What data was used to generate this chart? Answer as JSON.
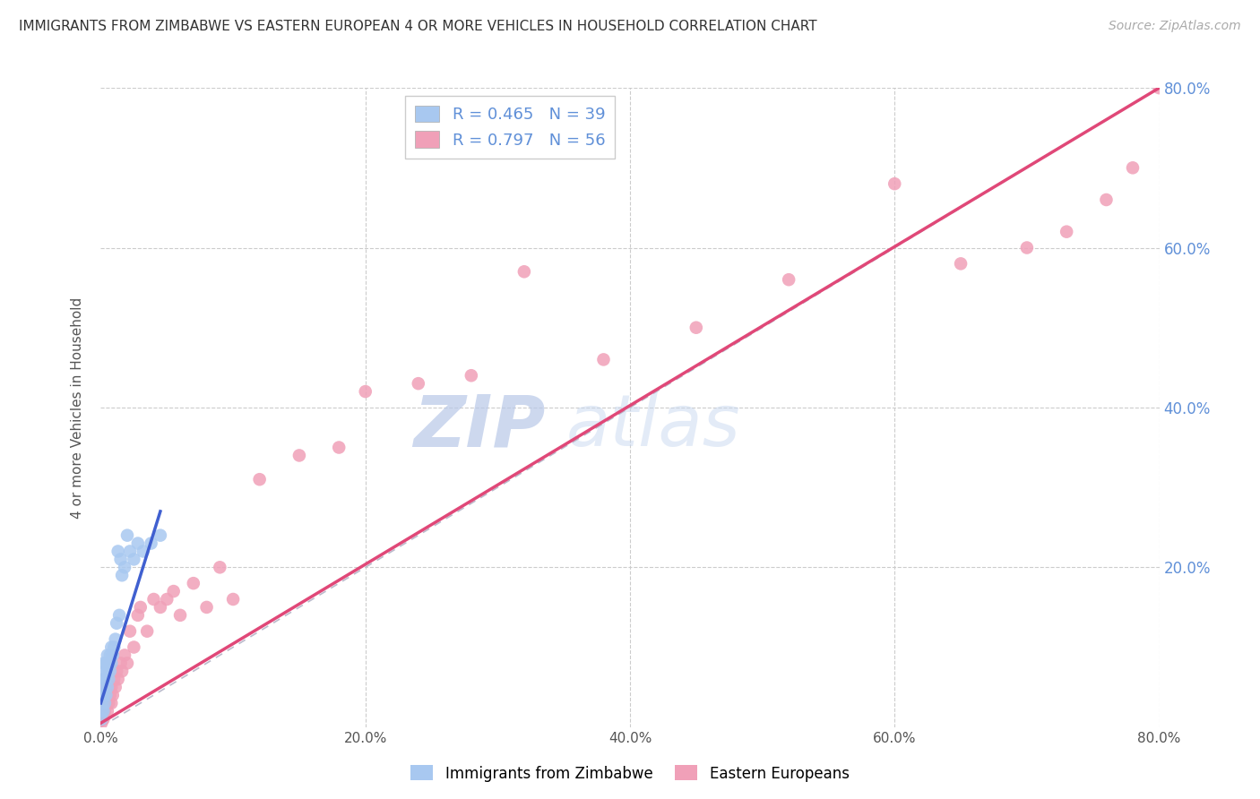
{
  "title": "IMMIGRANTS FROM ZIMBABWE VS EASTERN EUROPEAN 4 OR MORE VEHICLES IN HOUSEHOLD CORRELATION CHART",
  "source": "Source: ZipAtlas.com",
  "ylabel": "4 or more Vehicles in Household",
  "legend_labels": [
    "Immigrants from Zimbabwe",
    "Eastern Europeans"
  ],
  "R_zimbabwe": 0.465,
  "N_zimbabwe": 39,
  "R_eastern": 0.797,
  "N_eastern": 56,
  "blue_color": "#A8C8F0",
  "pink_color": "#F0A0B8",
  "blue_line_color": "#4060D0",
  "pink_line_color": "#E04878",
  "right_axis_color": "#6090D8",
  "watermark_color": "#C8D8F0",
  "xlim": [
    0.0,
    0.8
  ],
  "ylim": [
    0.0,
    0.8
  ],
  "zimbabwe_x": [
    0.0005,
    0.001,
    0.001,
    0.001,
    0.002,
    0.002,
    0.002,
    0.002,
    0.003,
    0.003,
    0.003,
    0.004,
    0.004,
    0.004,
    0.005,
    0.005,
    0.005,
    0.006,
    0.006,
    0.007,
    0.007,
    0.008,
    0.008,
    0.009,
    0.01,
    0.011,
    0.012,
    0.013,
    0.014,
    0.015,
    0.016,
    0.018,
    0.02,
    0.022,
    0.025,
    0.028,
    0.032,
    0.038,
    0.045
  ],
  "zimbabwe_y": [
    0.01,
    0.02,
    0.03,
    0.04,
    0.02,
    0.04,
    0.06,
    0.08,
    0.03,
    0.05,
    0.07,
    0.04,
    0.06,
    0.08,
    0.05,
    0.07,
    0.09,
    0.06,
    0.08,
    0.07,
    0.09,
    0.08,
    0.1,
    0.09,
    0.1,
    0.11,
    0.13,
    0.22,
    0.14,
    0.21,
    0.19,
    0.2,
    0.24,
    0.22,
    0.21,
    0.23,
    0.22,
    0.23,
    0.24
  ],
  "eastern_x": [
    0.0005,
    0.001,
    0.001,
    0.002,
    0.002,
    0.003,
    0.003,
    0.004,
    0.004,
    0.005,
    0.005,
    0.006,
    0.006,
    0.007,
    0.008,
    0.008,
    0.009,
    0.01,
    0.011,
    0.012,
    0.013,
    0.015,
    0.016,
    0.018,
    0.02,
    0.022,
    0.025,
    0.028,
    0.03,
    0.035,
    0.04,
    0.045,
    0.05,
    0.055,
    0.06,
    0.07,
    0.08,
    0.09,
    0.1,
    0.12,
    0.15,
    0.18,
    0.2,
    0.24,
    0.28,
    0.32,
    0.38,
    0.45,
    0.52,
    0.6,
    0.65,
    0.7,
    0.73,
    0.76,
    0.78,
    0.8
  ],
  "eastern_y": [
    0.005,
    0.01,
    0.02,
    0.01,
    0.03,
    0.02,
    0.04,
    0.03,
    0.05,
    0.02,
    0.04,
    0.03,
    0.05,
    0.04,
    0.03,
    0.05,
    0.04,
    0.06,
    0.05,
    0.07,
    0.06,
    0.08,
    0.07,
    0.09,
    0.08,
    0.12,
    0.1,
    0.14,
    0.15,
    0.12,
    0.16,
    0.15,
    0.16,
    0.17,
    0.14,
    0.18,
    0.15,
    0.2,
    0.16,
    0.31,
    0.34,
    0.35,
    0.42,
    0.43,
    0.44,
    0.57,
    0.46,
    0.5,
    0.56,
    0.68,
    0.58,
    0.6,
    0.62,
    0.66,
    0.7,
    0.8
  ],
  "zim_line_x": [
    0.0,
    0.045
  ],
  "zim_line_y": [
    0.03,
    0.27
  ],
  "east_line_x": [
    0.0,
    0.8
  ],
  "east_line_y": [
    0.005,
    0.8
  ]
}
